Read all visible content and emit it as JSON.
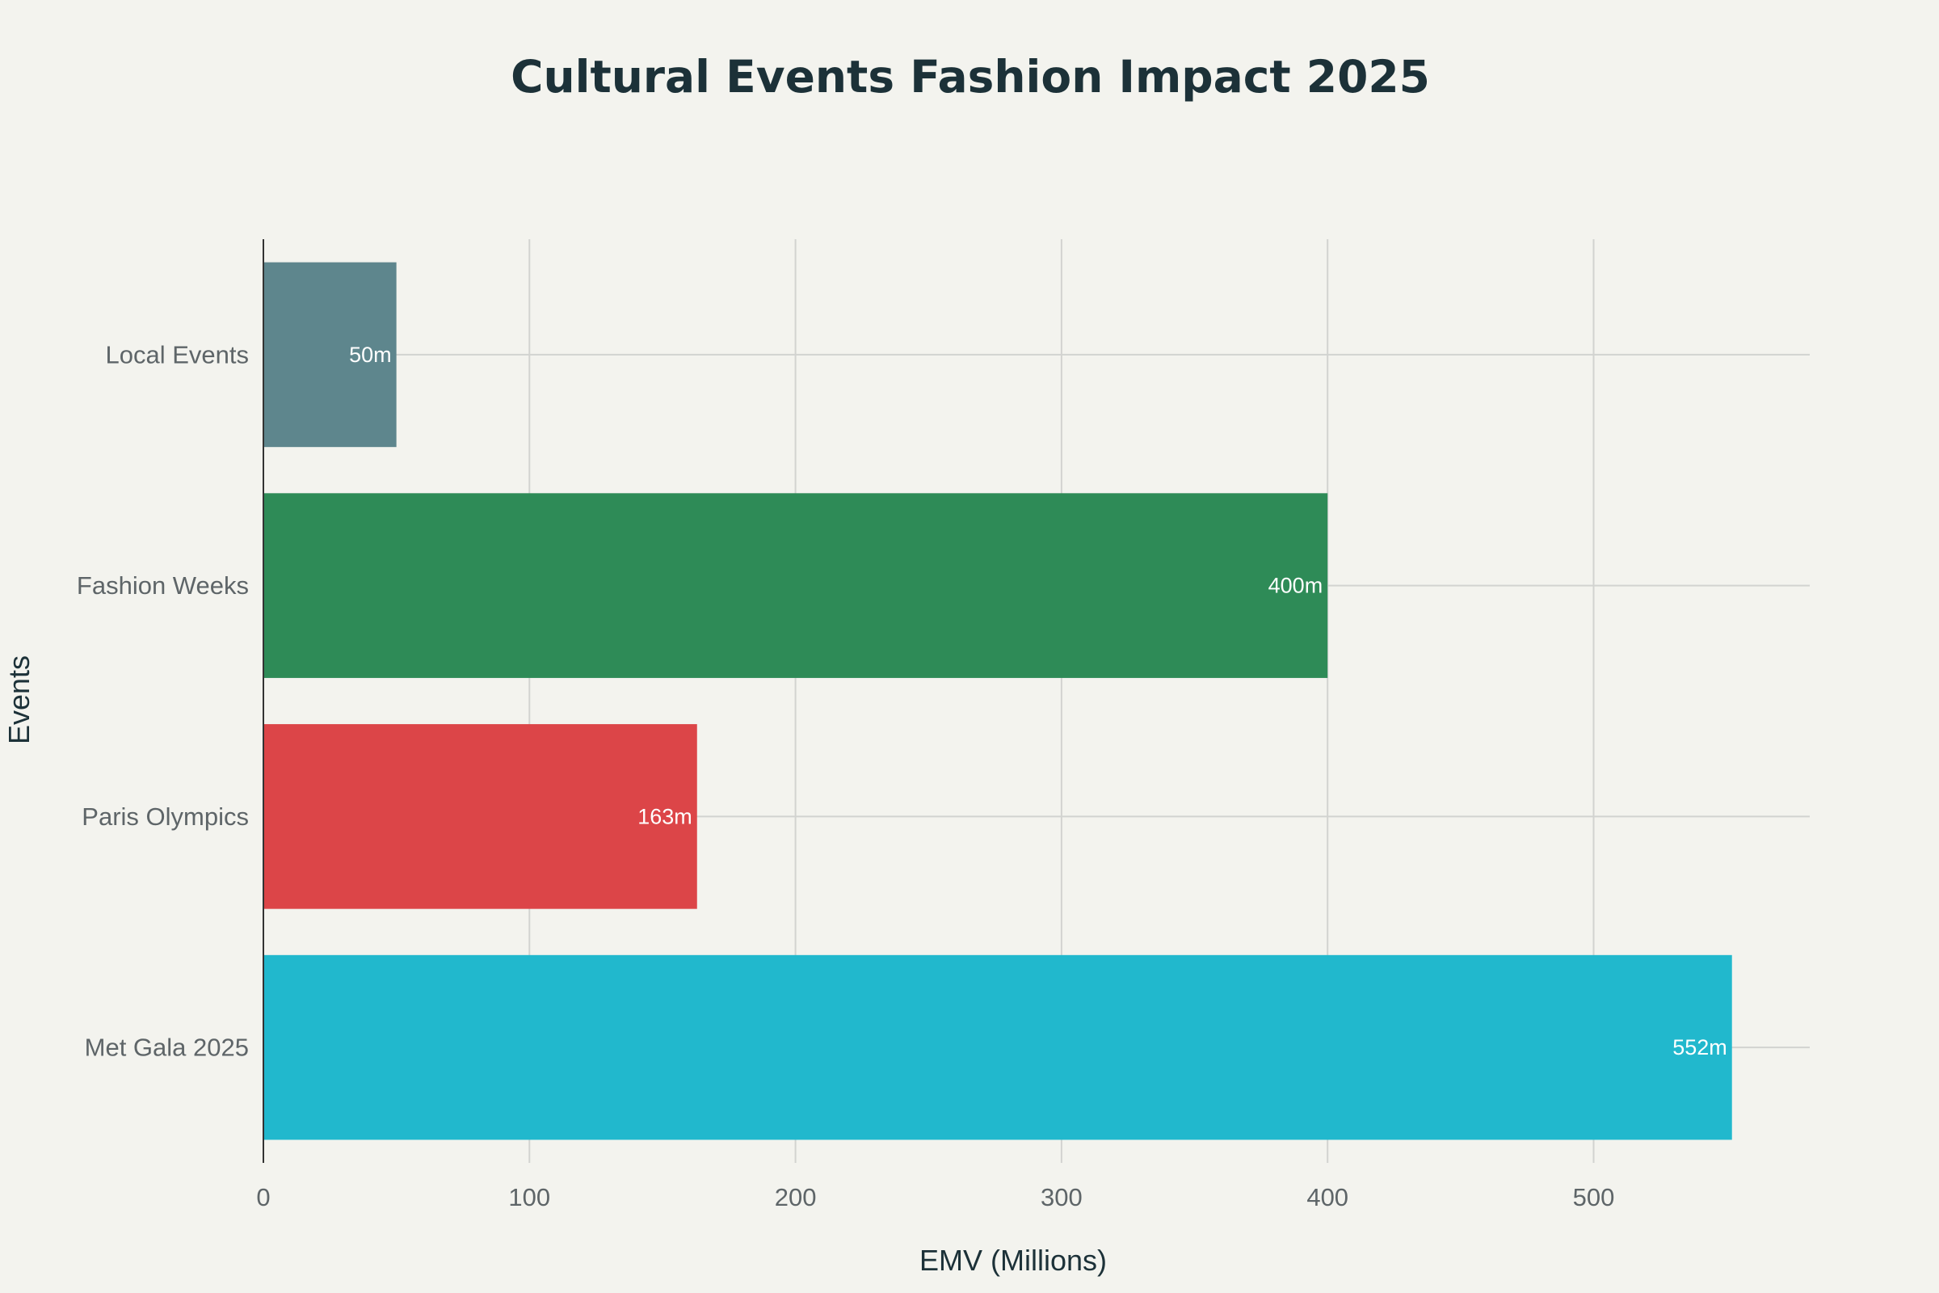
{
  "chart_data": {
    "type": "bar",
    "orientation": "horizontal",
    "title": "Cultural Events Fashion Impact 2025",
    "xlabel": "EMV (Millions)",
    "ylabel": "Events",
    "categories": [
      "Met Gala 2025",
      "Paris Olympics",
      "Fashion Weeks",
      "Local Events"
    ],
    "values": [
      552,
      163,
      400,
      50
    ],
    "data_labels": [
      "552m",
      "163m",
      "400m",
      "50m"
    ],
    "colors": [
      "#21b8cd",
      "#dc4548",
      "#2e8b57",
      "#5e868d"
    ],
    "xlim": [
      0,
      580
    ],
    "xticks": [
      0,
      100,
      200,
      300,
      400,
      500
    ],
    "xtick_labels": [
      "0",
      "100",
      "200",
      "300",
      "400",
      "500"
    ],
    "grid": true,
    "legend": "none"
  }
}
